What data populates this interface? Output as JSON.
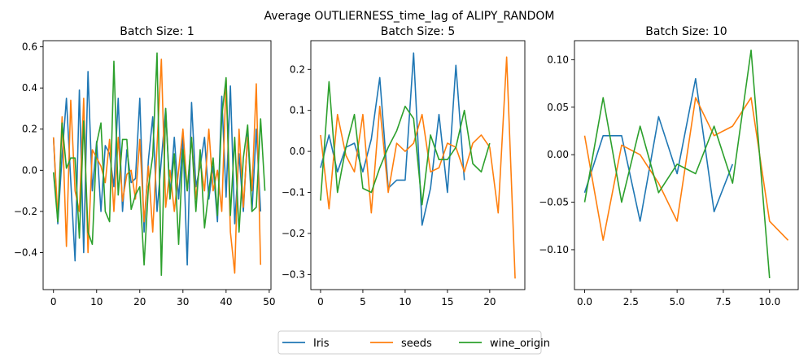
{
  "suptitle": "Average OUTLIERNESS_time_lag of ALIPY_RANDOM",
  "colors": {
    "Iris": "#1f77b4",
    "seeds": "#ff7f0e",
    "wine_origin": "#2ca02c"
  },
  "legend": {
    "placement": "bottom-center",
    "entries": [
      "Iris",
      "seeds",
      "wine_origin"
    ]
  },
  "chart_data": [
    {
      "type": "line",
      "title": "Batch Size: 1",
      "xlabel": "",
      "ylabel": "",
      "xlim": [
        -2.4,
        50.4
      ],
      "ylim": [
        -0.58,
        0.63
      ],
      "xticks": [
        0,
        10,
        20,
        30,
        40,
        50
      ],
      "xtick_labels": [
        "0",
        "10",
        "20",
        "30",
        "40",
        "50"
      ],
      "yticks": [
        -0.4,
        -0.2,
        0.0,
        0.2,
        0.4,
        0.6
      ],
      "ytick_labels": [
        "−0.4",
        "−0.2",
        "0.0",
        "0.2",
        "0.4",
        "0.6"
      ],
      "series": [
        {
          "name": "Iris",
          "x": [
            0,
            1,
            2,
            3,
            4,
            5,
            6,
            7,
            8,
            9,
            10,
            11,
            12,
            13,
            14,
            15,
            16,
            17,
            18,
            19,
            20,
            21,
            22,
            23,
            24,
            25,
            26,
            27,
            28,
            29,
            30,
            31,
            32,
            33,
            34,
            35,
            36,
            37,
            38,
            39,
            40,
            41,
            42,
            43,
            44,
            45,
            46,
            47,
            48
          ],
          "y": [
            0.16,
            -0.26,
            0.07,
            0.35,
            -0.05,
            -0.44,
            0.39,
            -0.4,
            0.48,
            -0.1,
            0.14,
            -0.2,
            0.12,
            0.08,
            -0.08,
            0.35,
            -0.2,
            0.1,
            -0.06,
            -0.04,
            0.35,
            -0.3,
            0.05,
            0.26,
            -0.2,
            0.05,
            0.3,
            -0.12,
            0.16,
            -0.14,
            0.16,
            -0.46,
            0.33,
            -0.08,
            0.02,
            0.16,
            -0.14,
            0.02,
            -0.25,
            0.36,
            -0.13,
            0.41,
            -0.26,
            0.08,
            -0.2,
            0.18,
            -0.2,
            0.2,
            -0.2
          ]
        },
        {
          "name": "seeds",
          "x": [
            0,
            1,
            2,
            3,
            4,
            5,
            6,
            7,
            8,
            9,
            10,
            11,
            12,
            13,
            14,
            15,
            16,
            17,
            18,
            19,
            20,
            21,
            22,
            23,
            24,
            25,
            26,
            27,
            28,
            29,
            30,
            31,
            32,
            33,
            34,
            35,
            36,
            37,
            38,
            39,
            40,
            41,
            42,
            43,
            44,
            45,
            46,
            47,
            48
          ],
          "y": [
            0.16,
            -0.23,
            0.26,
            -0.37,
            0.34,
            -0.1,
            -0.2,
            0.35,
            -0.4,
            0.1,
            0.06,
            0.02,
            -0.06,
            0.15,
            -0.2,
            0.16,
            -0.15,
            -0.02,
            0.0,
            -0.14,
            0.15,
            -0.25,
            0.02,
            -0.3,
            0.12,
            0.54,
            -0.18,
            0.0,
            -0.2,
            0.0,
            0.2,
            -0.1,
            0.16,
            -0.14,
            0.05,
            -0.1,
            0.2,
            -0.1,
            0.0,
            -0.2,
            0.44,
            -0.3,
            -0.5,
            0.2,
            -0.18,
            0.16,
            -0.1,
            0.42,
            -0.46
          ]
        },
        {
          "name": "wine_origin",
          "x": [
            0,
            1,
            2,
            3,
            4,
            5,
            6,
            7,
            8,
            9,
            10,
            11,
            12,
            13,
            14,
            15,
            16,
            17,
            18,
            19,
            20,
            21,
            22,
            23,
            24,
            25,
            26,
            27,
            28,
            29,
            30,
            31,
            32,
            33,
            34,
            35,
            36,
            37,
            38,
            39,
            40,
            41,
            42,
            43,
            44,
            45,
            46,
            47,
            48,
            49
          ],
          "y": [
            -0.01,
            -0.25,
            0.23,
            0.01,
            0.06,
            0.06,
            -0.33,
            0.24,
            -0.3,
            -0.36,
            0.13,
            0.23,
            -0.2,
            -0.25,
            0.53,
            -0.12,
            0.15,
            0.15,
            -0.19,
            -0.12,
            -0.08,
            -0.46,
            -0.08,
            0.07,
            0.57,
            -0.51,
            0.3,
            -0.14,
            0.08,
            -0.36,
            0.1,
            -0.1,
            0.16,
            -0.2,
            0.1,
            -0.28,
            -0.1,
            0.06,
            -0.22,
            0.26,
            0.45,
            -0.22,
            0.16,
            -0.3,
            0.06,
            0.22,
            -0.2,
            -0.18,
            0.25,
            -0.1
          ]
        }
      ]
    },
    {
      "type": "line",
      "title": "Batch Size: 5",
      "xlabel": "",
      "ylabel": "",
      "xlim": [
        -1.15,
        24.15
      ],
      "ylim": [
        -0.337,
        0.27
      ],
      "xticks": [
        0,
        5,
        10,
        15,
        20
      ],
      "xtick_labels": [
        "0",
        "5",
        "10",
        "15",
        "20"
      ],
      "yticks": [
        -0.3,
        -0.2,
        -0.1,
        0.0,
        0.1,
        0.2
      ],
      "ytick_labels": [
        "−0.3",
        "−0.2",
        "−0.1",
        "0.0",
        "0.1",
        "0.2"
      ],
      "series": [
        {
          "name": "Iris",
          "x": [
            0,
            1,
            2,
            3,
            4,
            5,
            6,
            7,
            8,
            9,
            10,
            11,
            12,
            13,
            14,
            15,
            16,
            17
          ],
          "y": [
            -0.04,
            0.04,
            -0.05,
            0.01,
            0.02,
            -0.05,
            0.03,
            0.18,
            -0.09,
            -0.07,
            -0.07,
            0.24,
            -0.18,
            -0.09,
            0.09,
            -0.1,
            0.21,
            -0.07
          ]
        },
        {
          "name": "seeds",
          "x": [
            0,
            1,
            2,
            3,
            4,
            5,
            6,
            7,
            8,
            9,
            10,
            11,
            12,
            13,
            14,
            15,
            16,
            17,
            18,
            19,
            20,
            21,
            22,
            23
          ],
          "y": [
            0.04,
            -0.14,
            0.09,
            -0.01,
            -0.05,
            0.09,
            -0.15,
            0.11,
            -0.1,
            0.02,
            0.0,
            0.02,
            0.09,
            -0.05,
            -0.04,
            0.02,
            0.01,
            -0.05,
            0.02,
            0.04,
            0.01,
            -0.15,
            0.23,
            -0.31
          ]
        },
        {
          "name": "wine_origin",
          "x": [
            0,
            1,
            2,
            3,
            4,
            5,
            6,
            7,
            8,
            9,
            10,
            11,
            12,
            13,
            14,
            15,
            16,
            17,
            18,
            19,
            20
          ],
          "y": [
            -0.12,
            0.17,
            -0.1,
            0.01,
            0.09,
            -0.09,
            -0.1,
            -0.04,
            0.01,
            0.05,
            0.11,
            0.08,
            -0.13,
            0.04,
            -0.02,
            -0.02,
            0.01,
            0.1,
            -0.03,
            -0.05,
            0.02
          ]
        }
      ]
    },
    {
      "type": "line",
      "title": "Batch Size: 10",
      "xlabel": "",
      "ylabel": "",
      "xlim": [
        -0.55,
        11.55
      ],
      "ylim": [
        -0.142,
        0.12
      ],
      "xticks": [
        0,
        2.5,
        5,
        7.5,
        10
      ],
      "xtick_labels": [
        "0.0",
        "2.5",
        "5.0",
        "7.5",
        "10.0"
      ],
      "yticks": [
        -0.1,
        -0.05,
        0.0,
        0.05,
        0.1
      ],
      "ytick_labels": [
        "−0.10",
        "−0.05",
        "0.00",
        "0.05",
        "0.10"
      ],
      "series": [
        {
          "name": "Iris",
          "x": [
            0,
            1,
            2,
            3,
            4,
            5,
            6,
            7,
            8
          ],
          "y": [
            -0.04,
            0.02,
            0.02,
            -0.07,
            0.04,
            -0.02,
            0.08,
            -0.06,
            -0.01
          ]
        },
        {
          "name": "seeds",
          "x": [
            0,
            1,
            2,
            3,
            4,
            5,
            6,
            7,
            8,
            9,
            10,
            11
          ],
          "y": [
            0.02,
            -0.09,
            0.01,
            0.0,
            -0.03,
            -0.07,
            0.06,
            0.02,
            0.03,
            0.06,
            -0.07,
            -0.09
          ]
        },
        {
          "name": "wine_origin",
          "x": [
            0,
            1,
            2,
            3,
            4,
            5,
            6,
            7,
            8,
            9,
            10
          ],
          "y": [
            -0.05,
            0.06,
            -0.05,
            0.03,
            -0.04,
            -0.01,
            -0.02,
            0.03,
            -0.03,
            0.11,
            -0.13
          ]
        }
      ]
    }
  ]
}
